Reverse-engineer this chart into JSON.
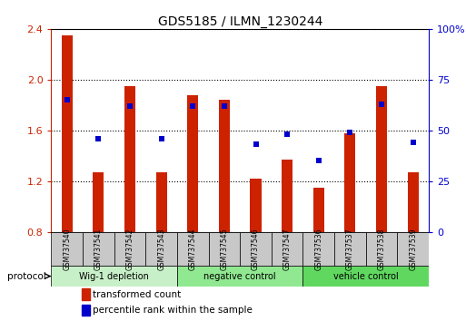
{
  "title": "GDS5185 / ILMN_1230244",
  "samples": [
    "GSM737540",
    "GSM737541",
    "GSM737542",
    "GSM737543",
    "GSM737544",
    "GSM737545",
    "GSM737546",
    "GSM737547",
    "GSM737536",
    "GSM737537",
    "GSM737538",
    "GSM737539"
  ],
  "red_values": [
    2.35,
    1.27,
    1.95,
    1.27,
    1.88,
    1.84,
    1.22,
    1.37,
    1.15,
    1.58,
    1.95,
    1.27
  ],
  "blue_values_pct": [
    65,
    46,
    62,
    46,
    62,
    62,
    43,
    48,
    35,
    49,
    63,
    44
  ],
  "ylim_left": [
    0.8,
    2.4
  ],
  "ylim_right": [
    0,
    100
  ],
  "yticks_left": [
    0.8,
    1.2,
    1.6,
    2.0,
    2.4
  ],
  "yticks_left_labels": [
    "0.8",
    "1.2",
    "1.6",
    "2.0",
    "2.4"
  ],
  "yticks_right": [
    0,
    25,
    50,
    75,
    100
  ],
  "yticks_right_labels": [
    "0",
    "25",
    "50",
    "75",
    "100%"
  ],
  "groups": [
    {
      "label": "Wig-1 depletion",
      "start": 0,
      "end": 4,
      "color": "#c8f0c8"
    },
    {
      "label": "negative control",
      "start": 4,
      "end": 8,
      "color": "#90e890"
    },
    {
      "label": "vehicle control",
      "start": 8,
      "end": 12,
      "color": "#60d860"
    }
  ],
  "bar_color": "#cc2200",
  "blue_color": "#0000cc",
  "bar_width": 0.35,
  "bg_color": "#ffffff",
  "sample_box_color": "#c8c8c8",
  "legend_items": [
    {
      "color": "#cc2200",
      "label": "transformed count"
    },
    {
      "color": "#0000cc",
      "label": "percentile rank within the sample"
    }
  ],
  "protocol_label": "protocol",
  "baseline": 0.8
}
